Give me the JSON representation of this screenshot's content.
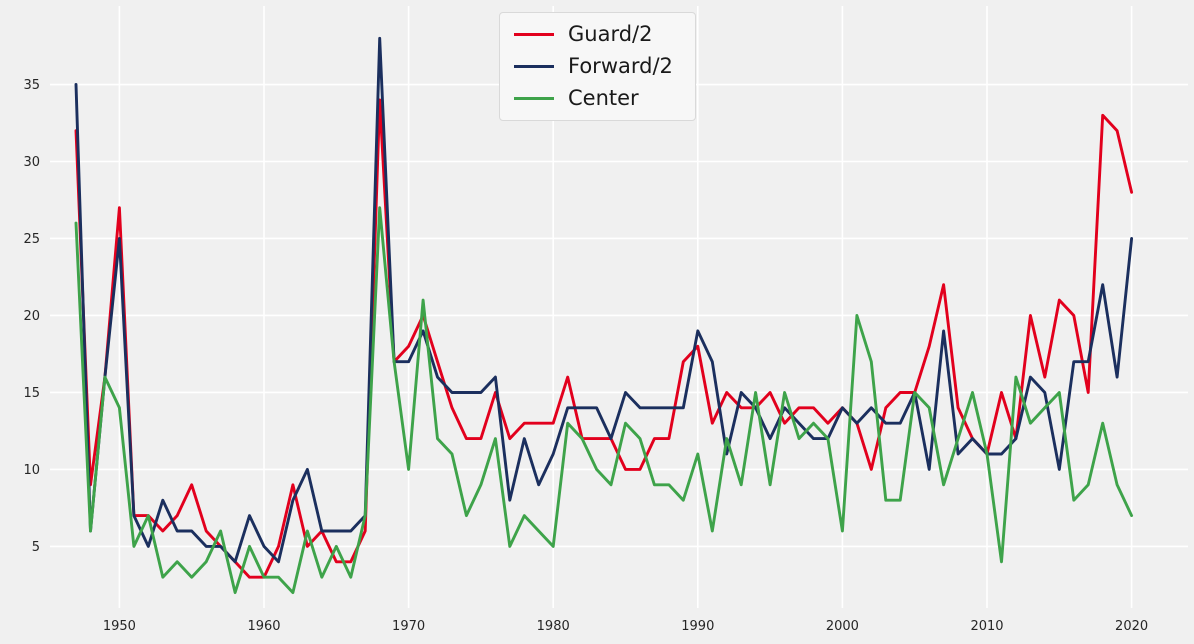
{
  "chart_data": {
    "type": "line",
    "title": "",
    "xlabel": "",
    "ylabel": "",
    "grid": true,
    "background_color": "#f0f0f0",
    "gridline_color": "#ffffff",
    "legend_position": "top-center",
    "xlim": [
      1945.2,
      2023.9
    ],
    "ylim": [
      1,
      40.1
    ],
    "xticks": [
      1950,
      1960,
      1970,
      1980,
      1990,
      2000,
      2010,
      2020
    ],
    "yticks": [
      5,
      10,
      15,
      20,
      25,
      30,
      35
    ],
    "x": [
      1947,
      1948,
      1949,
      1950,
      1951,
      1952,
      1953,
      1954,
      1955,
      1956,
      1957,
      1958,
      1959,
      1960,
      1961,
      1962,
      1963,
      1964,
      1965,
      1966,
      1967,
      1968,
      1969,
      1970,
      1971,
      1972,
      1973,
      1974,
      1975,
      1976,
      1977,
      1978,
      1979,
      1980,
      1981,
      1982,
      1983,
      1984,
      1985,
      1986,
      1987,
      1988,
      1989,
      1990,
      1991,
      1992,
      1993,
      1994,
      1995,
      1996,
      1997,
      1998,
      1999,
      2000,
      2001,
      2002,
      2003,
      2004,
      2005,
      2006,
      2007,
      2008,
      2009,
      2010,
      2011,
      2012,
      2013,
      2014,
      2015,
      2016,
      2017,
      2018,
      2019,
      2020
    ],
    "series": [
      {
        "name": "Guard/2",
        "color": "#e2001d",
        "values": [
          32,
          9,
          16,
          27,
          7,
          7,
          6,
          7,
          9,
          6,
          5,
          4,
          3,
          3,
          5,
          9,
          5,
          6,
          4,
          4,
          6,
          34,
          17,
          18,
          20,
          17,
          14,
          12,
          12,
          15,
          12,
          13,
          13,
          13,
          16,
          12,
          12,
          12,
          10,
          10,
          12,
          12,
          17,
          18,
          13,
          15,
          14,
          14,
          15,
          13,
          14,
          14,
          13,
          14,
          13,
          10,
          14,
          15,
          15,
          18,
          22,
          14,
          12,
          11,
          15,
          12,
          20,
          16,
          21,
          20,
          15,
          33,
          32,
          28
        ]
      },
      {
        "name": "Forward/2",
        "color": "#1b2f5e",
        "values": [
          35,
          6,
          16,
          25,
          7,
          5,
          8,
          6,
          6,
          5,
          5,
          4,
          7,
          5,
          4,
          8,
          10,
          6,
          6,
          6,
          7,
          38,
          17,
          17,
          19,
          16,
          15,
          15,
          15,
          16,
          8,
          12,
          9,
          11,
          14,
          14,
          14,
          12,
          15,
          14,
          14,
          14,
          14,
          19,
          17,
          11,
          15,
          14,
          12,
          14,
          13,
          12,
          12,
          14,
          13,
          14,
          13,
          13,
          15,
          10,
          19,
          11,
          12,
          11,
          11,
          12,
          16,
          15,
          10,
          17,
          17,
          22,
          16,
          25
        ]
      },
      {
        "name": "Center",
        "color": "#3ea34a",
        "values": [
          26,
          6,
          16,
          14,
          5,
          7,
          3,
          4,
          3,
          4,
          6,
          2,
          5,
          3,
          3,
          2,
          6,
          3,
          5,
          3,
          7,
          27,
          17,
          10,
          21,
          12,
          11,
          7,
          9,
          12,
          5,
          7,
          6,
          5,
          13,
          12,
          10,
          9,
          13,
          12,
          9,
          9,
          8,
          11,
          6,
          12,
          9,
          15,
          9,
          15,
          12,
          13,
          12,
          6,
          20,
          17,
          8,
          8,
          15,
          14,
          9,
          12,
          15,
          11,
          4,
          16,
          13,
          14,
          15,
          8,
          9,
          13,
          9,
          7
        ]
      }
    ]
  }
}
